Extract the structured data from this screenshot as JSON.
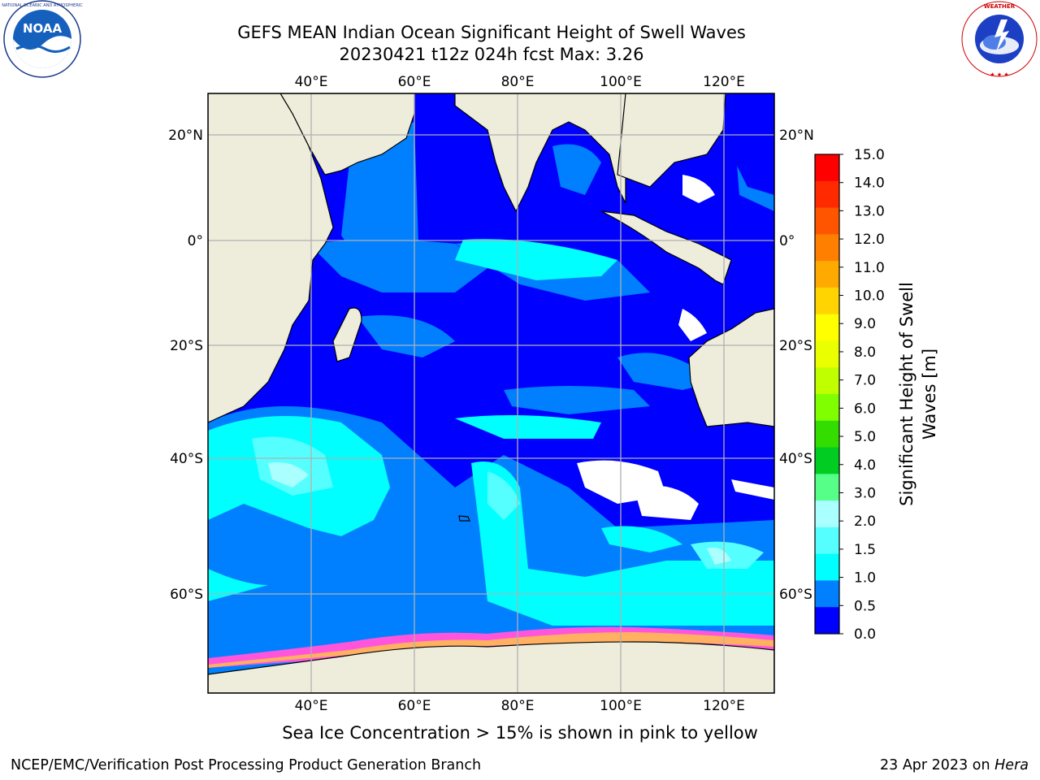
{
  "header": {
    "title_line1": "GEFS MEAN Indian Ocean Significant Height of Swell Waves",
    "title_line2": "20230421 t12z 024h fcst   Max: 3.26"
  },
  "logos": {
    "left": {
      "icon": "noaa-logo-icon",
      "text": "NOAA",
      "ring_text": "NATIONAL OCEANIC AND ATMOSPHERIC ADMINISTRATION · U.S. DEPARTMENT OF COMMERCE"
    },
    "right": {
      "icon": "nws-logo-icon",
      "ring_text": "NATIONAL WEATHER SERVICE"
    }
  },
  "map": {
    "lon_ticks_top": [
      "40°E",
      "60°E",
      "80°E",
      "100°E",
      "120°E"
    ],
    "lon_ticks_bottom": [
      "40°E",
      "60°E",
      "80°E",
      "100°E",
      "120°E"
    ],
    "lat_ticks_left": [
      "20°N",
      "0°",
      "20°S",
      "40°S",
      "60°S"
    ],
    "lat_ticks_right": [
      "20°N",
      "0°",
      "20°S",
      "40°S",
      "60°S"
    ],
    "land_color": "#eeeddc",
    "grid_color": "#b0b0b0"
  },
  "colorbar": {
    "label": "Significant Height of Swell Waves [m]",
    "ticks": [
      "15.0",
      "14.0",
      "13.0",
      "12.0",
      "11.0",
      "10.0",
      "9.0",
      "8.0",
      "7.0",
      "6.0",
      "5.0",
      "4.0",
      "3.0",
      "2.0",
      "1.5",
      "1.0",
      "0.5",
      "0.0"
    ],
    "colors": [
      "#ff0000",
      "#ff2a00",
      "#ff5500",
      "#ff7f00",
      "#ffaa00",
      "#ffd400",
      "#ffff00",
      "#eaff00",
      "#bfff00",
      "#7fff00",
      "#33dd00",
      "#00cc22",
      "#55ff88",
      "#aaffff",
      "#55ffff",
      "#00ffff",
      "#0080ff",
      "#0000ff"
    ]
  },
  "ice_note": "Sea Ice Concentration > 15% is shown in pink to yellow",
  "footer": {
    "left": "NCEP/EMC/Verification Post Processing Product Generation Branch",
    "right_date": "23 Apr 2023 on ",
    "right_host": "Hera"
  }
}
